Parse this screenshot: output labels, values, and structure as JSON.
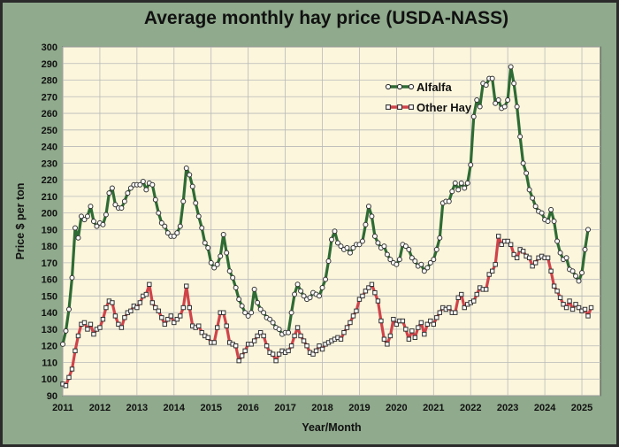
{
  "colors": {
    "frame": "#8faa8c",
    "plot_bg": "#fbf6dc",
    "grid": "#b9b9b9",
    "alfalfa": "#2e6b34",
    "other_hay": "#d0434a",
    "marker_fill": "#ffffff",
    "marker_stroke": "#333333"
  },
  "chart_data": {
    "type": "line",
    "title": "Average monthly hay price (USDA-NASS)",
    "xlabel": "Year/Month",
    "ylabel": "Price $ per ton",
    "ylim": [
      90,
      300
    ],
    "yticks": [
      90,
      100,
      110,
      120,
      130,
      140,
      150,
      160,
      170,
      180,
      190,
      200,
      210,
      220,
      230,
      240,
      250,
      260,
      270,
      280,
      290,
      300
    ],
    "xlim": [
      2011,
      2025.5
    ],
    "xticks": [
      "2011",
      "2012",
      "2013",
      "2014",
      "2015",
      "2016",
      "2017",
      "2018",
      "2019",
      "2020",
      "2021",
      "2022",
      "2023",
      "2024",
      "2025"
    ],
    "grid": true,
    "legend": "upper-middle-right",
    "x_start": "2011-01",
    "frequency": "monthly",
    "series": [
      {
        "name": "Alfalfa",
        "values": [
          121,
          129,
          142,
          161,
          191,
          185,
          198,
          196,
          198,
          204,
          195,
          192,
          194,
          193,
          199,
          212,
          215,
          205,
          203,
          203,
          207,
          212,
          215,
          217,
          217,
          217,
          219,
          214,
          218,
          217,
          208,
          200,
          194,
          192,
          188,
          186,
          186,
          188,
          192,
          207,
          227,
          223,
          216,
          206,
          198,
          191,
          182,
          179,
          170,
          167,
          169,
          174,
          187,
          176,
          165,
          161,
          155,
          148,
          144,
          140,
          138,
          140,
          154,
          146,
          142,
          140,
          137,
          136,
          134,
          131,
          130,
          127,
          128,
          128,
          140,
          151,
          157,
          153,
          150,
          148,
          149,
          152,
          151,
          150,
          155,
          160,
          171,
          184,
          189,
          182,
          180,
          178,
          179,
          176,
          179,
          181,
          181,
          183,
          193,
          204,
          198,
          186,
          182,
          179,
          180,
          175,
          172,
          170,
          169,
          172,
          181,
          180,
          178,
          173,
          171,
          168,
          169,
          165,
          167,
          170,
          172,
          178,
          185,
          206,
          207,
          207,
          213,
          218,
          214,
          218,
          215,
          218,
          229,
          258,
          268,
          264,
          278,
          277,
          281,
          281,
          266,
          268,
          263,
          264,
          268,
          288,
          278,
          264,
          246,
          230,
          224,
          214,
          209,
          204,
          201,
          200,
          196,
          195,
          202,
          195,
          183,
          176,
          172,
          173,
          166,
          165,
          162,
          159,
          164,
          178,
          190
        ]
      },
      {
        "name": "Other Hay",
        "values": [
          97,
          96,
          101,
          106,
          117,
          126,
          133,
          134,
          130,
          133,
          127,
          130,
          131,
          136,
          143,
          147,
          146,
          138,
          133,
          131,
          137,
          140,
          141,
          144,
          143,
          146,
          150,
          151,
          157,
          146,
          143,
          141,
          137,
          133,
          136,
          138,
          134,
          136,
          138,
          143,
          156,
          143,
          132,
          131,
          132,
          128,
          126,
          125,
          122,
          122,
          131,
          140,
          140,
          132,
          122,
          121,
          120,
          111,
          114,
          117,
          121,
          121,
          123,
          126,
          128,
          126,
          120,
          116,
          115,
          111,
          115,
          117,
          116,
          117,
          120,
          126,
          131,
          126,
          123,
          120,
          116,
          115,
          117,
          120,
          118,
          121,
          122,
          123,
          124,
          125,
          124,
          128,
          131,
          134,
          138,
          141,
          148,
          150,
          153,
          155,
          157,
          152,
          147,
          135,
          124,
          121,
          126,
          136,
          133,
          135,
          135,
          130,
          124,
          129,
          125,
          131,
          134,
          127,
          133,
          135,
          133,
          137,
          140,
          143,
          142,
          143,
          140,
          140,
          149,
          151,
          143,
          145,
          146,
          147,
          151,
          155,
          154,
          154,
          163,
          165,
          169,
          186,
          181,
          183,
          183,
          181,
          175,
          173,
          178,
          177,
          174,
          173,
          168,
          170,
          173,
          174,
          173,
          173,
          165,
          156,
          153,
          149,
          145,
          143,
          147,
          142,
          145,
          143,
          141,
          142,
          138,
          143
        ]
      }
    ]
  }
}
